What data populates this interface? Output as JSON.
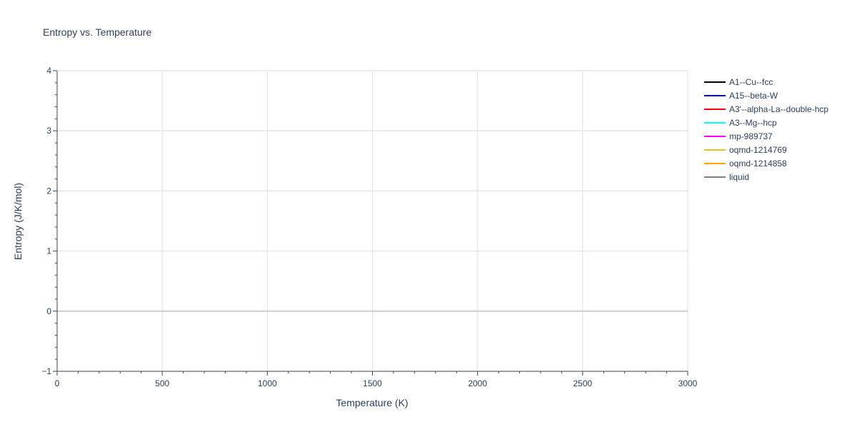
{
  "chart_data": {
    "type": "line",
    "title": "Entropy vs. Temperature",
    "xlabel": "Temperature (K)",
    "ylabel": "Entropy (J/K/mol)",
    "xlim": [
      0,
      3000
    ],
    "ylim": [
      -1,
      4
    ],
    "xticks": [
      0,
      500,
      1000,
      1500,
      2000,
      2500,
      3000
    ],
    "yticks": [
      -1,
      0,
      1,
      2,
      3,
      4
    ],
    "xtick_labels": [
      "0",
      "500",
      "1000",
      "1500",
      "2000",
      "2500",
      "3000"
    ],
    "ytick_labels": [
      "−1",
      "0",
      "1",
      "2",
      "3",
      "4"
    ],
    "grid": true,
    "legend_position": "right",
    "series": [
      {
        "name": "A1--Cu--fcc",
        "color": "#000000",
        "x": [],
        "y": []
      },
      {
        "name": "A15--beta-W",
        "color": "#0000ff",
        "x": [],
        "y": []
      },
      {
        "name": "A3'--alpha-La--double-hcp",
        "color": "#ff0000",
        "x": [],
        "y": []
      },
      {
        "name": "A3--Mg--hcp",
        "color": "#00ffff",
        "x": [],
        "y": []
      },
      {
        "name": "mp-989737",
        "color": "#ff00ff",
        "x": [],
        "y": []
      },
      {
        "name": "oqmd-1214769",
        "color": "#f0c020",
        "x": [],
        "y": []
      },
      {
        "name": "oqmd-1214858",
        "color": "#ffa500",
        "x": [],
        "y": []
      },
      {
        "name": "liquid",
        "color": "#808080",
        "x": [],
        "y": []
      }
    ]
  }
}
